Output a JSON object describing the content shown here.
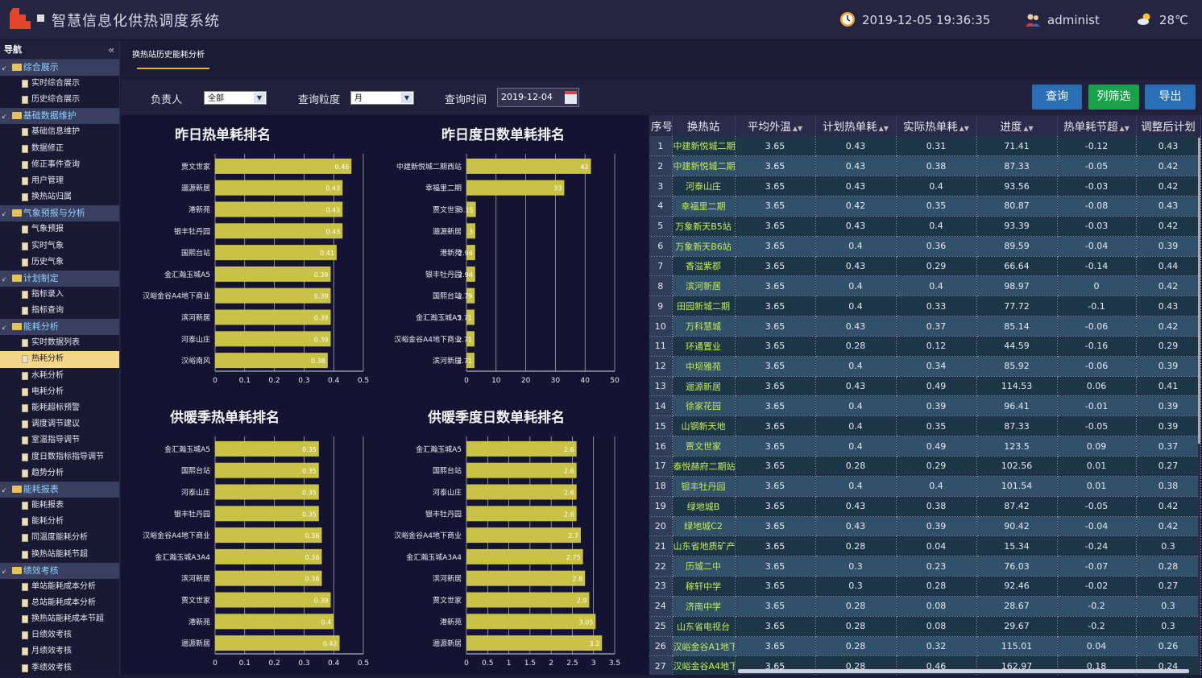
{
  "header": {
    "app_title": "智慧信息化供热调度系统",
    "datetime": "2019-12-05 19:36:35",
    "user": "administ",
    "temperature": "28℃"
  },
  "sidebar": {
    "title": "导航",
    "collapse": "«",
    "entries": [
      {
        "kind": "group",
        "label": "综合展示"
      },
      {
        "kind": "item",
        "label": "实时综合展示"
      },
      {
        "kind": "item",
        "label": "历史综合展示"
      },
      {
        "kind": "group",
        "label": "基础数据维护"
      },
      {
        "kind": "item",
        "label": "基础信息维护"
      },
      {
        "kind": "item",
        "label": "数据修正"
      },
      {
        "kind": "item",
        "label": "修正事件查询"
      },
      {
        "kind": "item",
        "label": "用户管理"
      },
      {
        "kind": "item",
        "label": "换热站归属"
      },
      {
        "kind": "group",
        "label": "气象预报与分析"
      },
      {
        "kind": "item",
        "label": "气象预报"
      },
      {
        "kind": "item",
        "label": "实时气象"
      },
      {
        "kind": "item",
        "label": "历史气象"
      },
      {
        "kind": "group",
        "label": "计划制定"
      },
      {
        "kind": "item",
        "label": "指标录入"
      },
      {
        "kind": "item",
        "label": "指标查询"
      },
      {
        "kind": "group",
        "label": "能耗分析"
      },
      {
        "kind": "item",
        "label": "实时数据列表"
      },
      {
        "kind": "item",
        "label": "热耗分析",
        "active": true
      },
      {
        "kind": "item",
        "label": "水耗分析"
      },
      {
        "kind": "item",
        "label": "电耗分析"
      },
      {
        "kind": "item",
        "label": "能耗超标预警"
      },
      {
        "kind": "item",
        "label": "调度调节建议"
      },
      {
        "kind": "item",
        "label": "室温指导调节"
      },
      {
        "kind": "item",
        "label": "度日数指标指导调节"
      },
      {
        "kind": "item",
        "label": "趋势分析"
      },
      {
        "kind": "group",
        "label": "能耗报表"
      },
      {
        "kind": "item",
        "label": "能耗报表"
      },
      {
        "kind": "item",
        "label": "能耗分析"
      },
      {
        "kind": "item",
        "label": "同温度能耗分析"
      },
      {
        "kind": "item",
        "label": "换热站能耗节超"
      },
      {
        "kind": "group",
        "label": "绩效考核"
      },
      {
        "kind": "item",
        "label": "单站能耗成本分析"
      },
      {
        "kind": "item",
        "label": "总站能耗成本分析"
      },
      {
        "kind": "item",
        "label": "换热站能耗成本节超"
      },
      {
        "kind": "item",
        "label": "日绩效考核"
      },
      {
        "kind": "item",
        "label": "月绩效考核"
      },
      {
        "kind": "item",
        "label": "季绩效考核"
      }
    ]
  },
  "tabs": {
    "active": "换热站历史能耗分析"
  },
  "filters": {
    "owner_label": "负责人",
    "owner_value": "全部",
    "granularity_label": "查询粒度",
    "granularity_value": "月",
    "time_label": "查询时间",
    "time_value": "2019-12-04"
  },
  "buttons": {
    "query": "查询",
    "column_filter": "列筛选",
    "export": "导出"
  },
  "colors": {
    "bar": "#c9c246",
    "query_btn": "#2a6fb6",
    "filter_btn": "#18a24a",
    "export_btn": "#2a6fb6",
    "station_text": "#c7ec5a"
  },
  "chart_data": [
    {
      "type": "bar",
      "orientation": "horizontal",
      "title": "昨日热单耗排名",
      "categories": [
        "贾文世家",
        "逦源新居",
        "港新苑",
        "银丰牡丹园",
        "国熙台站",
        "金汇瀚玉城A5",
        "汉峪金谷A4地下商业",
        "滨河新居",
        "河泰山庄",
        "汉峪南风"
      ],
      "values": [
        0.46,
        0.43,
        0.43,
        0.43,
        0.41,
        0.39,
        0.39,
        0.39,
        0.39,
        0.38
      ],
      "xlim": [
        0,
        0.5
      ],
      "xticks": [
        "0",
        "0.1",
        "0.2",
        "0.3",
        "0.4",
        "0.5"
      ]
    },
    {
      "type": "bar",
      "orientation": "horizontal",
      "title": "昨日度日数单耗排名",
      "categories": [
        "中建新悦城二期西站",
        "幸福里二期",
        "贾文世家",
        "逦源新居",
        "港新苑",
        "银丰牡丹园",
        "国熙台站",
        "金汇瀚玉城A5",
        "汉峪金谷A4地下商业",
        "滨河新居"
      ],
      "values": [
        42,
        33,
        3.15,
        3.0,
        2.94,
        2.94,
        2.79,
        2.71,
        2.71,
        2.71
      ],
      "xlim": [
        0,
        50
      ],
      "xticks": [
        "0",
        "10",
        "20",
        "30",
        "40",
        "50"
      ]
    },
    {
      "type": "bar",
      "orientation": "horizontal",
      "title": "供暖季热单耗排名",
      "categories": [
        "金汇瀚玉城A5",
        "国熙台站",
        "河泰山庄",
        "银丰牡丹园",
        "汉峪金谷A4地下商业",
        "金汇瀚玉城A3A4",
        "滨河新居",
        "贾文世家",
        "港新苑",
        "逦源新居"
      ],
      "values": [
        0.35,
        0.35,
        0.35,
        0.35,
        0.36,
        0.36,
        0.36,
        0.39,
        0.4,
        0.42
      ],
      "xlim": [
        0,
        0.5
      ],
      "xticks": [
        "0",
        "0.1",
        "0.2",
        "0.3",
        "0.4",
        "0.5"
      ]
    },
    {
      "type": "bar",
      "orientation": "horizontal",
      "title": "供暖季度日数单耗排名",
      "categories": [
        "金汇瀚玉城A5",
        "国熙台站",
        "河泰山庄",
        "银丰牡丹园",
        "汉峪金谷A4地下商业",
        "金汇瀚玉城A3A4",
        "滨河新居",
        "贾文世家",
        "港新苑",
        "逦源新居"
      ],
      "values": [
        2.6,
        2.6,
        2.6,
        2.6,
        2.7,
        2.75,
        2.8,
        2.9,
        3.05,
        3.2
      ],
      "xlim": [
        0,
        3.5
      ],
      "xticks": [
        "0",
        "0.5",
        "1",
        "1.5",
        "2",
        "2.5",
        "3",
        "3.5"
      ]
    }
  ],
  "table": {
    "columns": [
      "序号",
      "换热站",
      "平均外温",
      "计划热单耗",
      "实际热单耗",
      "进度",
      "热单耗节超",
      "调整后计划"
    ],
    "sortable": [
      false,
      false,
      true,
      true,
      true,
      true,
      true,
      false
    ],
    "rows": [
      [
        "1",
        "中建新悦城二期",
        "3.65",
        "0.43",
        "0.31",
        "71.41",
        "-0.12",
        "0.43"
      ],
      [
        "2",
        "中建新悦城二期",
        "3.65",
        "0.43",
        "0.38",
        "87.33",
        "-0.05",
        "0.42"
      ],
      [
        "3",
        "河泰山庄",
        "3.65",
        "0.43",
        "0.4",
        "93.56",
        "-0.03",
        "0.42"
      ],
      [
        "4",
        "幸福里二期",
        "3.65",
        "0.42",
        "0.35",
        "80.87",
        "-0.08",
        "0.43"
      ],
      [
        "5",
        "万象新天B5站",
        "3.65",
        "0.43",
        "0.4",
        "93.39",
        "-0.03",
        "0.42"
      ],
      [
        "6",
        "万象新天B6站",
        "3.65",
        "0.4",
        "0.36",
        "89.59",
        "-0.04",
        "0.39"
      ],
      [
        "7",
        "香溢紫郡",
        "3.65",
        "0.43",
        "0.29",
        "66.64",
        "-0.14",
        "0.44"
      ],
      [
        "8",
        "滨河新居",
        "3.65",
        "0.4",
        "0.4",
        "98.97",
        "0",
        "0.42"
      ],
      [
        "9",
        "田园新城二期",
        "3.65",
        "0.4",
        "0.33",
        "77.72",
        "-0.1",
        "0.43"
      ],
      [
        "10",
        "万科慧城",
        "3.65",
        "0.43",
        "0.37",
        "85.14",
        "-0.06",
        "0.42"
      ],
      [
        "11",
        "环通置业",
        "3.65",
        "0.28",
        "0.12",
        "44.59",
        "-0.16",
        "0.29"
      ],
      [
        "12",
        "中坝雅苑",
        "3.65",
        "0.4",
        "0.34",
        "85.92",
        "-0.06",
        "0.39"
      ],
      [
        "13",
        "逦源新居",
        "3.65",
        "0.43",
        "0.49",
        "114.53",
        "0.06",
        "0.41"
      ],
      [
        "14",
        "徐家花园",
        "3.65",
        "0.4",
        "0.39",
        "96.41",
        "-0.01",
        "0.39"
      ],
      [
        "15",
        "山钢新天地",
        "3.65",
        "0.4",
        "0.35",
        "87.33",
        "-0.05",
        "0.39"
      ],
      [
        "16",
        "贾文世家",
        "3.65",
        "0.4",
        "0.49",
        "123.5",
        "0.09",
        "0.37"
      ],
      [
        "17",
        "泰悦赫府二期站",
        "3.65",
        "0.28",
        "0.29",
        "102.56",
        "0.01",
        "0.27"
      ],
      [
        "18",
        "银丰牡丹园",
        "3.65",
        "0.4",
        "0.4",
        "101.54",
        "0.01",
        "0.38"
      ],
      [
        "19",
        "绿地城B",
        "3.65",
        "0.43",
        "0.38",
        "87.42",
        "-0.05",
        "0.42"
      ],
      [
        "20",
        "绿地城C2",
        "3.65",
        "0.43",
        "0.39",
        "90.42",
        "-0.04",
        "0.42"
      ],
      [
        "21",
        "山东省地质矿产",
        "3.65",
        "0.28",
        "0.04",
        "15.34",
        "-0.24",
        "0.3"
      ],
      [
        "22",
        "历城二中",
        "3.65",
        "0.3",
        "0.23",
        "76.03",
        "-0.07",
        "0.28"
      ],
      [
        "23",
        "稼轩中学",
        "3.65",
        "0.3",
        "0.28",
        "92.46",
        "-0.02",
        "0.27"
      ],
      [
        "24",
        "济南中学",
        "3.65",
        "0.28",
        "0.08",
        "28.67",
        "-0.2",
        "0.3"
      ],
      [
        "25",
        "山东省电视台",
        "3.65",
        "0.28",
        "0.08",
        "29.67",
        "-0.2",
        "0.3"
      ],
      [
        "26",
        "汉峪金谷A1地下",
        "3.65",
        "0.28",
        "0.32",
        "115.01",
        "0.04",
        "0.26"
      ],
      [
        "27",
        "汉峪金谷A4地下",
        "3.65",
        "0.28",
        "0.46",
        "162.97",
        "0.18",
        "0.24"
      ]
    ]
  }
}
